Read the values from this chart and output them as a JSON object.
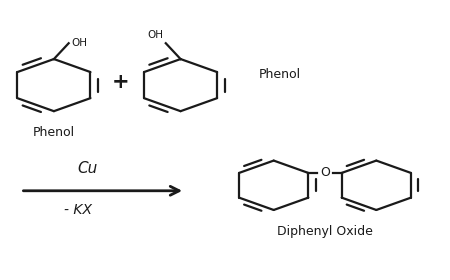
{
  "background_color": "#ffffff",
  "text_color_black": "#1a1a1a",
  "text_color_gold": "#B8860B",
  "phenol_label": "Phenol",
  "phenol_label2": "Phenol",
  "product_label": "Diphenyl Oxide",
  "catalyst": "Cu",
  "byproduct": "- KX",
  "plus_sign": "+",
  "figsize": [
    4.5,
    2.8
  ],
  "dpi": 100
}
